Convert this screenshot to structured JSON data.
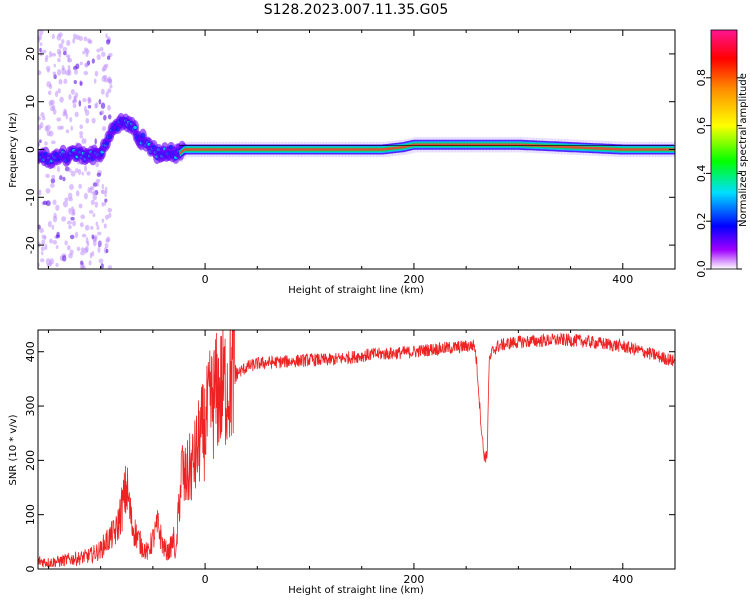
{
  "title": "S128.2023.007.11.35.G05",
  "colors": {
    "snr_line": "#ee2222",
    "axis": "#000000",
    "background": "#ffffff"
  },
  "chart_data": [
    {
      "type": "heatmap",
      "xlabel": "Height of straight line (km)",
      "ylabel": "Frequency (Hz)",
      "xlim": [
        -160,
        450
      ],
      "ylim": [
        -25,
        25
      ],
      "xticks": [
        0,
        200,
        400
      ],
      "yticks": [
        -20,
        -10,
        0,
        10,
        20
      ],
      "grid": false,
      "colorbar": {
        "label": "Normalized spectral amplitude",
        "range": [
          0,
          1
        ],
        "ticks": [
          "0.0",
          "0.2",
          "0.4",
          "0.6",
          "0.8"
        ],
        "colormap": [
          "#ffffff",
          "#a000ff",
          "#0000ff",
          "#00e0ff",
          "#00ff00",
          "#ffff00",
          "#ff9000",
          "#ff0000",
          "#ff1493"
        ]
      },
      "ridge": {
        "description_x": [
          -160,
          -140,
          -120,
          -110,
          -100,
          -95,
          -90,
          -85,
          -80,
          -75,
          -70,
          -65,
          -60,
          -55,
          -50,
          -45,
          -40,
          -35,
          -30,
          -25,
          -20,
          0,
          50,
          80,
          100,
          150,
          170,
          190,
          200,
          250,
          300,
          350,
          400,
          450
        ],
        "frequency_hz": [
          -2,
          -1.5,
          -1,
          -1.5,
          -1,
          2,
          3,
          5,
          6,
          6,
          5,
          3,
          2,
          1,
          0,
          -1,
          -1,
          0,
          -1,
          -1,
          0,
          0,
          0,
          0,
          0,
          0,
          0,
          0.5,
          1,
          1,
          1,
          0.5,
          0,
          0
        ]
      }
    },
    {
      "type": "line",
      "xlabel": "Height of straight line (km)",
      "ylabel": "SNR (10 * v/v)",
      "xlim": [
        -160,
        450
      ],
      "ylim": [
        0,
        440
      ],
      "xticks": [
        0,
        200,
        400
      ],
      "yticks": [
        0,
        100,
        200,
        300,
        400
      ],
      "grid": false,
      "series": [
        {
          "x": [
            -160,
            -150,
            -140,
            -130,
            -120,
            -110,
            -100,
            -95,
            -90,
            -85,
            -80,
            -75,
            -70,
            -65,
            -60,
            -55,
            -50,
            -45,
            -40,
            -35,
            -30,
            -28,
            -25,
            -22,
            -20,
            -15,
            -10,
            -5,
            0,
            5,
            10,
            15,
            20,
            25,
            30,
            35,
            40,
            50,
            60,
            80,
            100,
            120,
            140,
            160,
            180,
            200,
            220,
            240,
            250,
            258,
            260,
            262,
            263,
            265,
            267,
            270,
            272,
            275,
            280,
            290,
            300,
            320,
            340,
            360,
            380,
            400,
            420,
            440,
            450
          ],
          "y": [
            15,
            12,
            14,
            18,
            20,
            25,
            35,
            50,
            60,
            70,
            110,
            150,
            80,
            60,
            40,
            30,
            55,
            80,
            40,
            30,
            55,
            20,
            120,
            190,
            160,
            180,
            200,
            240,
            260,
            300,
            320,
            330,
            340,
            350,
            360,
            365,
            372,
            378,
            380,
            382,
            385,
            385,
            390,
            395,
            397,
            400,
            405,
            408,
            410,
            412,
            380,
            330,
            300,
            250,
            210,
            205,
            380,
            400,
            410,
            415,
            418,
            420,
            422,
            420,
            415,
            410,
            400,
            388,
            382
          ]
        }
      ]
    }
  ]
}
